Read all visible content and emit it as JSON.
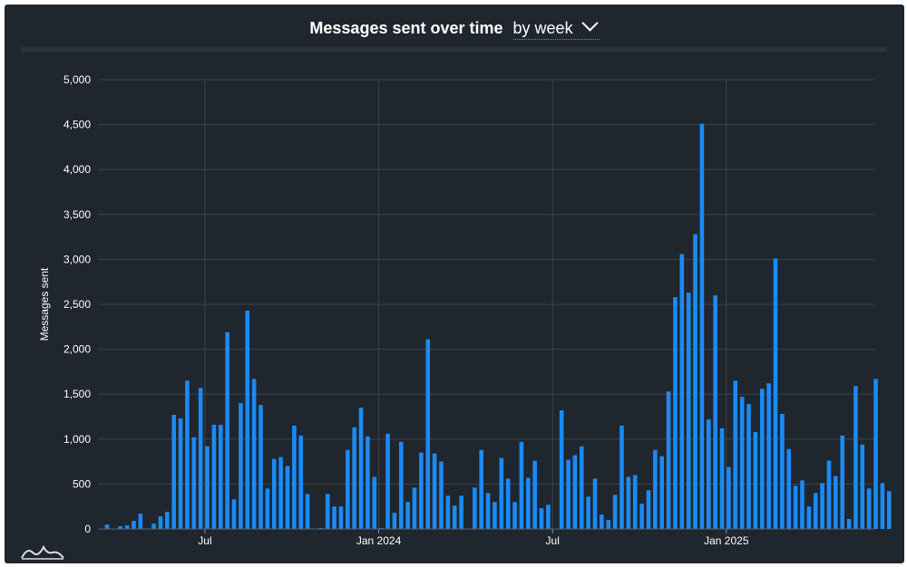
{
  "header": {
    "title": "Messages sent over time",
    "period": "by week"
  },
  "colors": {
    "panel": "#1f262d",
    "bar": "#1a8af5",
    "grid": "#3b434c",
    "text": "#ffffff"
  },
  "chart_data": {
    "type": "bar",
    "title": "Messages sent over time",
    "ylabel": "Messages sent",
    "xlabel": "",
    "ylim": [
      0,
      5000
    ],
    "yticks": [
      "0",
      "500",
      "1,000",
      "1,500",
      "2,000",
      "2,500",
      "3,000",
      "3,500",
      "4,000",
      "4,500",
      "5,000"
    ],
    "xticks": [
      {
        "label": "Jul",
        "week_index": 15
      },
      {
        "label": "Jan 2024",
        "week_index": 41
      },
      {
        "label": "Jul",
        "week_index": 67
      },
      {
        "label": "Jan 2025",
        "week_index": 93
      }
    ],
    "grid": true,
    "values": [
      50,
      0,
      30,
      40,
      90,
      170,
      0,
      60,
      140,
      190,
      1270,
      1230,
      1650,
      1020,
      1570,
      920,
      1160,
      1160,
      2190,
      330,
      1400,
      2430,
      1670,
      1380,
      450,
      780,
      800,
      700,
      1150,
      1040,
      390,
      0,
      10,
      390,
      250,
      250,
      880,
      1130,
      1350,
      1030,
      580,
      10,
      1060,
      180,
      970,
      300,
      460,
      850,
      2110,
      840,
      750,
      370,
      260,
      370,
      0,
      460,
      880,
      400,
      300,
      790,
      560,
      300,
      970,
      570,
      760,
      230,
      270,
      0,
      1320,
      770,
      820,
      920,
      360,
      560,
      160,
      100,
      380,
      1150,
      580,
      600,
      280,
      430,
      880,
      810,
      1530,
      2580,
      3060,
      2630,
      3280,
      4510,
      1220,
      2600,
      1120,
      690,
      1650,
      1470,
      1390,
      1080,
      1560,
      1620,
      3010,
      1280,
      890,
      480,
      540,
      250,
      400,
      510,
      760,
      590,
      1040,
      110,
      1590,
      940,
      450,
      1670,
      510,
      420
    ]
  },
  "logo": {
    "name": "app-logo-icon"
  }
}
